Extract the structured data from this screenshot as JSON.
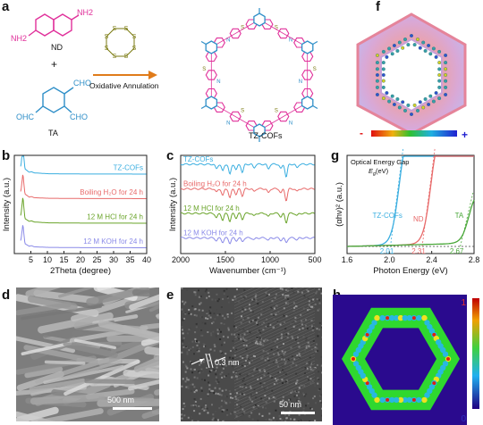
{
  "panels": {
    "a": "a",
    "b": "b",
    "c": "c",
    "d": "d",
    "e": "e",
    "f": "f",
    "g": "g",
    "h": "h"
  },
  "panel_a": {
    "nd_label": "ND",
    "plus": "+",
    "nh2": "NH2",
    "cho": "CHO",
    "ohc": "OHC",
    "ta_label": "TA",
    "arrow_label": "Oxidative Annulation",
    "product_label": "TZ-COFs",
    "sulfur": "S",
    "nitrogen": "N"
  },
  "panel_f": {
    "minus": "-",
    "plus": "+"
  },
  "panel_d": {
    "scale": "500 nm"
  },
  "panel_e": {
    "scale": "50 nm",
    "spacing": "0.3 nm"
  },
  "panel_h": {
    "cb_max": "1",
    "cb_min": "0"
  },
  "colors": {
    "nd": "#e0309a",
    "ta": "#2f8fc8",
    "arrow": "#e07b1a",
    "sulfur": "#7a7a10",
    "tzcofs": "#3aaee0",
    "boiling": "#e86a6a",
    "hcl": "#6aa42a",
    "koh": "#8a8ae8",
    "ta_curve": "#4aa83a"
  },
  "chart_data": [
    {
      "type": "line",
      "panel": "b",
      "xlabel": "2Theta (degree)",
      "ylabel": "Intensity (a.u.)",
      "xlim": [
        0,
        40
      ],
      "xticks": [
        5,
        10,
        15,
        20,
        25,
        30,
        35,
        40
      ],
      "series": [
        {
          "name": "TZ-COFs",
          "color": "#3aaee0",
          "offset": 3,
          "points": [
            [
              2,
              30
            ],
            [
              2.6,
              100
            ],
            [
              3.2,
              20
            ],
            [
              4.5,
              8
            ],
            [
              5.2,
              10
            ],
            [
              6,
              6
            ],
            [
              10,
              3
            ],
            [
              20,
              2
            ],
            [
              30,
              2
            ],
            [
              40,
              1.5
            ]
          ]
        },
        {
          "name": "Boiling H2O for 24 h",
          "color": "#e86a6a",
          "offset": 2,
          "points": [
            [
              2,
              28
            ],
            [
              2.6,
              90
            ],
            [
              3.2,
              18
            ],
            [
              4.5,
              7
            ],
            [
              5.2,
              9
            ],
            [
              6,
              5
            ],
            [
              10,
              3
            ],
            [
              20,
              2
            ],
            [
              30,
              2
            ],
            [
              40,
              1.5
            ]
          ]
        },
        {
          "name": "12 M HCl for 24 h",
          "color": "#6aa42a",
          "offset": 1,
          "points": [
            [
              2,
              30
            ],
            [
              2.6,
              95
            ],
            [
              3.2,
              18
            ],
            [
              4.5,
              8
            ],
            [
              5.2,
              10
            ],
            [
              6,
              6
            ],
            [
              10,
              3
            ],
            [
              20,
              2
            ],
            [
              30,
              2
            ],
            [
              40,
              1.5
            ]
          ]
        },
        {
          "name": "12 M KOH for 24 h",
          "color": "#8a8ae8",
          "offset": 0,
          "points": [
            [
              2,
              28
            ],
            [
              2.6,
              85
            ],
            [
              3.2,
              16
            ],
            [
              4.5,
              7
            ],
            [
              5.2,
              9
            ],
            [
              6,
              5
            ],
            [
              10,
              3
            ],
            [
              20,
              2
            ],
            [
              30,
              2
            ],
            [
              40,
              1.5
            ]
          ]
        }
      ],
      "legend_text": [
        "TZ-COFs",
        "Boiling H₂O for 24 h",
        "12 M HCl for 24 h",
        "12 M KOH for 24 h"
      ]
    },
    {
      "type": "line",
      "panel": "c",
      "xlabel": "Wavenumber (cm⁻¹)",
      "ylabel": "Intensity (a.u.)",
      "xlim": [
        2000,
        500
      ],
      "xticks": [
        2000,
        1500,
        1000,
        500
      ],
      "series": [
        {
          "name": "TZ-COFs",
          "color": "#3aaee0",
          "offset": 3,
          "dips": [
            [
              1600,
              0.2
            ],
            [
              1530,
              0.3
            ],
            [
              1450,
              0.45
            ],
            [
              1380,
              0.25
            ],
            [
              1310,
              0.35
            ],
            [
              1180,
              0.15
            ],
            [
              1020,
              0.2
            ],
            [
              880,
              0.2
            ],
            [
              820,
              0.55
            ],
            [
              700,
              0.15
            ]
          ]
        },
        {
          "name": "Boiling H2O for 24 h",
          "color": "#e86a6a",
          "offset": 2,
          "dips": [
            [
              1600,
              0.15
            ],
            [
              1530,
              0.3
            ],
            [
              1450,
              0.4
            ],
            [
              1380,
              0.25
            ],
            [
              1310,
              0.3
            ],
            [
              1180,
              0.12
            ],
            [
              1020,
              0.18
            ],
            [
              880,
              0.18
            ],
            [
              820,
              0.5
            ],
            [
              700,
              0.12
            ]
          ]
        },
        {
          "name": "12 M HCl for 24 h",
          "color": "#6aa42a",
          "offset": 1,
          "dips": [
            [
              1600,
              0.2
            ],
            [
              1530,
              0.3
            ],
            [
              1450,
              0.35
            ],
            [
              1380,
              0.2
            ],
            [
              1310,
              0.25
            ],
            [
              1180,
              0.12
            ],
            [
              1020,
              0.15
            ],
            [
              880,
              0.15
            ],
            [
              820,
              0.4
            ],
            [
              700,
              0.1
            ]
          ]
        },
        {
          "name": "12 M KOH for 24 h",
          "color": "#8a8ae8",
          "offset": 0,
          "dips": [
            [
              1600,
              0.12
            ],
            [
              1530,
              0.18
            ],
            [
              1450,
              0.22
            ],
            [
              1380,
              0.12
            ],
            [
              1310,
              0.16
            ],
            [
              1180,
              0.08
            ],
            [
              1020,
              0.1
            ],
            [
              880,
              0.1
            ],
            [
              820,
              0.2
            ],
            [
              700,
              0.08
            ]
          ]
        }
      ],
      "legend_text": [
        "TZ-COFs",
        "Boiling H₂O for 24 h",
        "12 M HCl for 24 h",
        "12 M KOH for 24 h"
      ]
    },
    {
      "type": "line",
      "panel": "g",
      "xlabel": "Photon Energy (eV)",
      "ylabel": "(αhν)² (a.u.)",
      "xlim": [
        1.6,
        2.8
      ],
      "xticks": [
        1.6,
        2.0,
        2.4,
        2.8
      ],
      "series": [
        {
          "name": "TZ-COFs",
          "color": "#3aaee0",
          "edge": 2.01
        },
        {
          "name": "ND",
          "color": "#e86a6a",
          "edge": 2.31
        },
        {
          "name": "TA",
          "color": "#4aa83a",
          "edge": 2.67
        }
      ],
      "annotation": [
        "Optical Energy Gap",
        "E",
        "g",
        " (eV)"
      ],
      "gap_values": [
        "2.01",
        "2.31",
        "2.67"
      ],
      "series_labels": [
        "TZ-COFs",
        "ND",
        "TA"
      ]
    }
  ]
}
